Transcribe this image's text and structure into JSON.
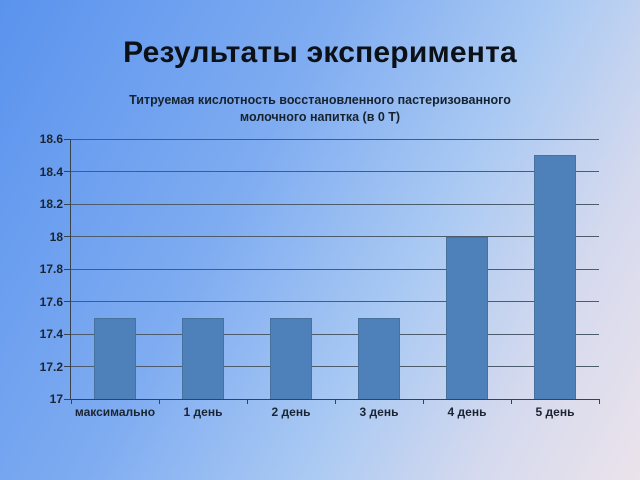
{
  "slide": {
    "title": "Результаты эксперимента"
  },
  "chart_data": {
    "type": "bar",
    "title": "Титруемая кислотность восстановленного пастеризованного молочного напитка (в 0 Т)",
    "title_lines": [
      "Титруемая кислотность восстановленного пастеризованного",
      "молочного напитка (в 0 Т)"
    ],
    "categories": [
      "максимально",
      "1 день",
      "2 день",
      "3 день",
      "4 день",
      "5 день"
    ],
    "values": [
      17.5,
      17.5,
      17.5,
      17.5,
      18,
      18.5
    ],
    "xlabel": "",
    "ylabel": "",
    "ylim": [
      17,
      18.6
    ],
    "ytick_step": 0.2,
    "ytick_labels": [
      "17",
      "17.2",
      "17.4",
      "17.6",
      "17.8",
      "18",
      "18.2",
      "18.4",
      "18.6"
    ],
    "grid": true,
    "legend_position": "none"
  },
  "colors": {
    "background_gradient": [
      "#5a93ee",
      "#7facf1",
      "#a9c9f3",
      "#d6daee",
      "#ebe3eb"
    ],
    "bar_fill": "#4e80ba",
    "bar_edge": "#47729e",
    "axis_line": "#39434e",
    "gridline": "#4d5c6c",
    "tick_label": "#1b2532",
    "slide_title": "#0b1117",
    "chart_title": "#16222f"
  }
}
